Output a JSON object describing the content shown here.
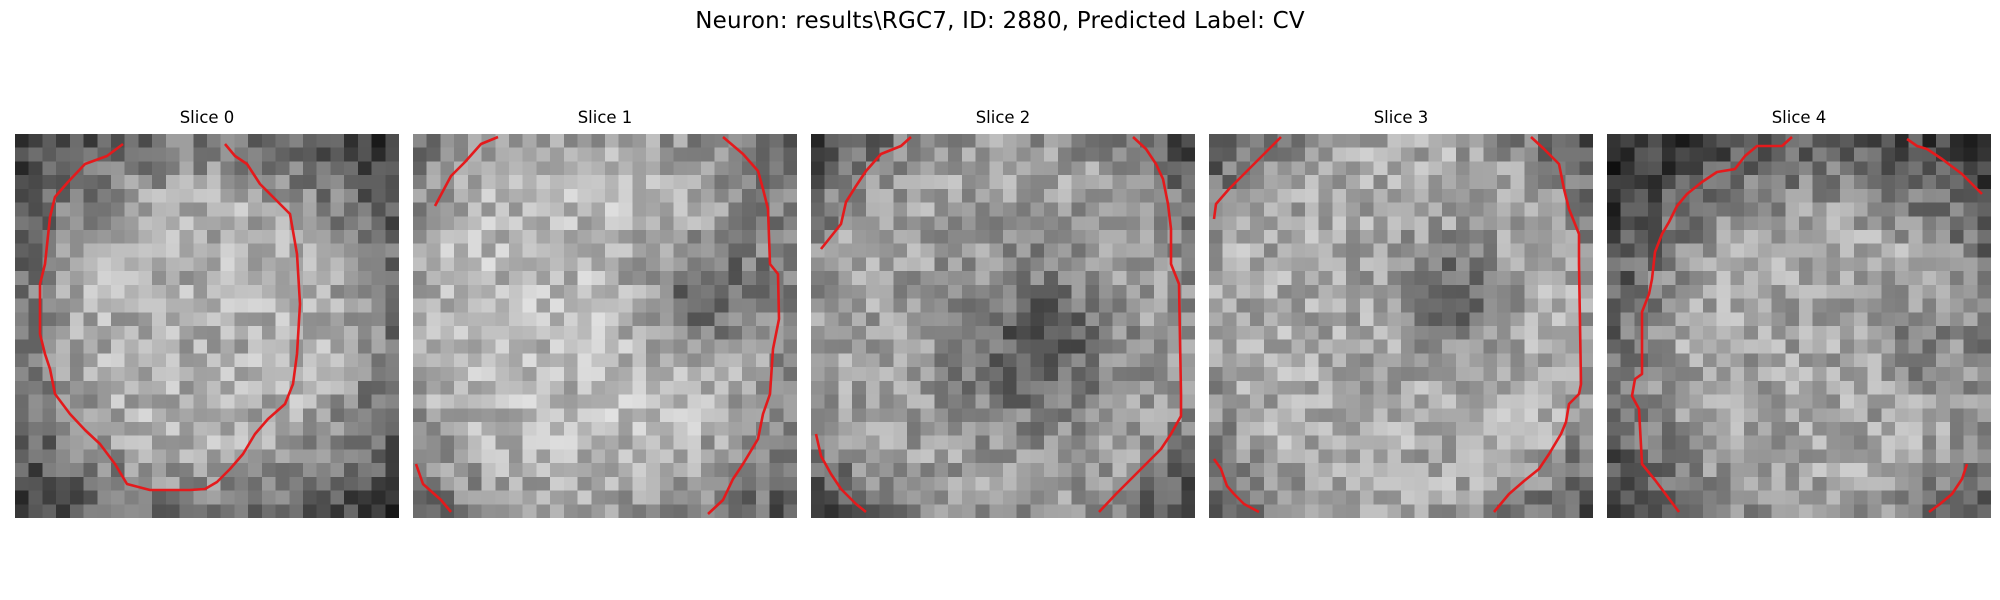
{
  "figure": {
    "suptitle": "Neuron: results\\RGC7, ID: 2880, Predicted Label: CV"
  },
  "colors": {
    "contour": "#e41a1c",
    "background": "#ffffff"
  },
  "slices": [
    {
      "title": "Slice 0"
    },
    {
      "title": "Slice 1"
    },
    {
      "title": "Slice 2"
    },
    {
      "title": "Slice 3"
    },
    {
      "title": "Slice 4"
    }
  ]
}
